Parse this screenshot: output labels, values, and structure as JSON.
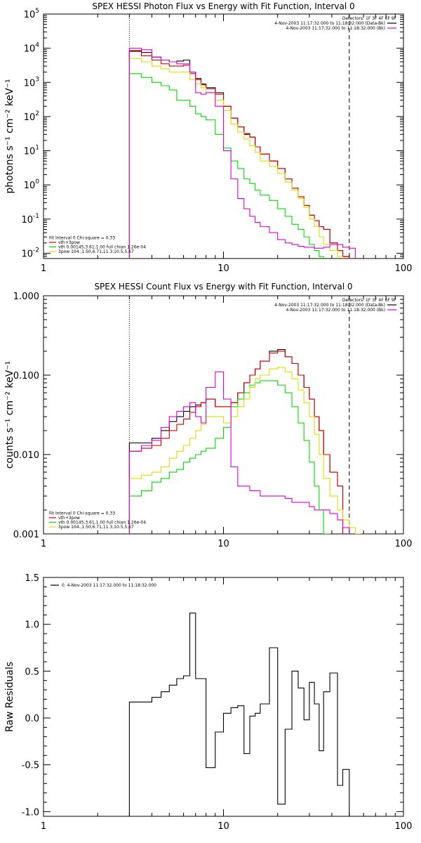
{
  "chart_data": [
    {
      "type": "line",
      "title": "SPEX HESSI Photon Flux vs Energy with Fit Function, Interval 0",
      "ylabel": "photons s⁻¹ cm⁻² keV⁻¹",
      "xlabel": "",
      "xscale": "log",
      "yscale": "log",
      "xlim": [
        1,
        100
      ],
      "ylim": [
        0.007,
        100000
      ],
      "xticks": [
        1,
        10,
        100
      ],
      "xtick_labels": [
        "1",
        "10",
        "100"
      ],
      "yticks": [
        0.01,
        0.1,
        1,
        10,
        100,
        1000,
        10000,
        100000
      ],
      "ytick_labels": [
        {
          "base": "10",
          "exp": "-2"
        },
        {
          "base": "10",
          "exp": "-1"
        },
        {
          "base": "10",
          "exp": "0"
        },
        {
          "base": "10",
          "exp": "1"
        },
        {
          "base": "10",
          "exp": "2"
        },
        {
          "base": "10",
          "exp": "3"
        },
        {
          "base": "10",
          "exp": "4"
        },
        {
          "base": "10",
          "exp": "5"
        }
      ],
      "vlines": [
        {
          "x": 3,
          "style": "dotted"
        },
        {
          "x": 50,
          "style": "dashed"
        }
      ],
      "legend_topright": {
        "header": "Detectors: 1F 3F 4F 6F 9F",
        "entries": [
          {
            "text": "4-Nov-2003 11:17:32.000 to 11:18:32.000 (Data-Bk)",
            "color": "#000000"
          },
          {
            "text": "4-Nov-2003 11:17:32.000 to 11:18:32.000 (Bk)",
            "color": "#dd00dd"
          }
        ]
      },
      "legend_bottomleft": {
        "header": "Fit Interval 0   Chi-square = 0.33",
        "entries": [
          {
            "text": "vth+3pow",
            "color": "#dd0000"
          },
          {
            "text": "vth 0.00145,3.61,1.00   full chian 1.26e-04",
            "color": "#00dd00"
          },
          {
            "text": "3pow 104.,1.50,6.71,11.3,10.5,5.67",
            "color": "#dddd00"
          }
        ]
      },
      "bin_edges": [
        3.0,
        3.5,
        4.0,
        4.5,
        5.0,
        5.5,
        6.0,
        6.5,
        7.0,
        7.5,
        8.0,
        9.0,
        10.0,
        11.0,
        12.0,
        13.0,
        14.0,
        15.0,
        16.0,
        18.0,
        20.0,
        22.0,
        24.0,
        26.0,
        28.0,
        30.0,
        32.0,
        34.0,
        36.0,
        39.0,
        43.0,
        46.0,
        50.0,
        54.0,
        58.0,
        63.0
      ],
      "series": [
        {
          "color": "#000000",
          "values": [
            8500,
            7500,
            5500,
            4500,
            4000,
            4200,
            4500,
            2000,
            1300,
            900,
            700,
            500,
            200,
            90,
            50,
            30,
            25,
            13,
            8,
            5,
            3,
            1.5,
            0.8,
            0.45,
            0.25,
            0.13,
            0.09,
            0.06,
            0.05,
            0.02,
            0.012,
            0.008,
            0.006,
            null,
            null
          ]
        },
        {
          "color": "#dd0000",
          "values": [
            8000,
            6000,
            4500,
            3500,
            3000,
            3000,
            3200,
            1800,
            1200,
            850,
            650,
            450,
            200,
            90,
            50,
            32,
            25,
            13,
            8,
            5,
            3,
            1.5,
            0.8,
            0.45,
            0.25,
            0.13,
            0.09,
            0.06,
            0.05,
            0.02,
            0.012,
            0.008,
            0.006,
            null,
            null
          ]
        },
        {
          "color": "#00dd00",
          "values": [
            1800,
            1400,
            1000,
            800,
            600,
            300,
            300,
            200,
            120,
            100,
            80,
            30,
            12,
            5,
            3,
            1.5,
            1.1,
            0.7,
            0.5,
            0.35,
            0.2,
            0.12,
            0.07,
            0.05,
            0.03,
            0.018,
            0.012,
            0.008,
            null,
            null,
            null,
            null,
            null,
            null,
            null
          ]
        },
        {
          "color": "#dddd00",
          "values": [
            5000,
            4000,
            3000,
            2500,
            2000,
            2000,
            2000,
            1200,
            900,
            700,
            500,
            300,
            150,
            60,
            35,
            22,
            14,
            9,
            5,
            3.5,
            2.2,
            1.2,
            0.7,
            0.4,
            0.22,
            0.1,
            0.06,
            0.03,
            0.018,
            0.012,
            0.008,
            0.006,
            null,
            null,
            null
          ]
        },
        {
          "color": "#dd00dd",
          "values": [
            10000,
            9000,
            5500,
            4500,
            4000,
            3500,
            3500,
            2000,
            500,
            450,
            500,
            200,
            10,
            1.5,
            0.4,
            0.2,
            0.12,
            0.08,
            0.06,
            0.04,
            0.025,
            0.02,
            0.018,
            0.016,
            0.015,
            0.015,
            0.014,
            0.014,
            0.015,
            0.018,
            0.018,
            0.015,
            0.014,
            null,
            null
          ]
        }
      ]
    },
    {
      "type": "line",
      "title": "SPEX HESSI Count Flux vs Energy with Fit Function, Interval 0",
      "ylabel": "counts s⁻¹ cm⁻² keV⁻¹",
      "xlabel": "",
      "xscale": "log",
      "yscale": "log",
      "xlim": [
        1,
        100
      ],
      "ylim": [
        0.001,
        1.0
      ],
      "xticks": [
        1,
        10,
        100
      ],
      "xtick_labels": [
        "1",
        "10",
        "100"
      ],
      "yticks": [
        0.001,
        0.01,
        0.1,
        1.0
      ],
      "ytick_labels": [
        "0.001",
        "0.010",
        "0.100",
        "1.000"
      ],
      "vlines": [
        {
          "x": 3,
          "style": "dotted"
        },
        {
          "x": 50,
          "style": "dashed"
        }
      ],
      "legend_topright": {
        "header": "Detectors: 1F 3F 4F 6F 9F",
        "entries": [
          {
            "text": "4-Nov-2003 11:17:32.000 to 11:18:32.000 (Data-Bk)",
            "color": "#000000"
          },
          {
            "text": "4-Nov-2003 11:17:32.000 to 11:18:32.000 (Bk)",
            "color": "#dd00dd"
          }
        ]
      },
      "legend_bottomleft": {
        "header": "Fit Interval 0   Chi-square = 0.33",
        "entries": [
          {
            "text": "vth+3pow",
            "color": "#dd0000"
          },
          {
            "text": "vth 0.00145,3.61,1.00   full chian 1.26e-04",
            "color": "#00dd00"
          },
          {
            "text": "3pow 104.,1.50,6.71,11.3,10.5,5.67",
            "color": "#dddd00"
          }
        ]
      },
      "bin_edges": [
        3.0,
        3.5,
        4.0,
        4.5,
        5.0,
        5.5,
        6.0,
        6.5,
        7.0,
        7.5,
        8.0,
        9.0,
        10.0,
        11.0,
        12.0,
        13.0,
        14.0,
        15.0,
        16.0,
        18.0,
        20.0,
        22.0,
        24.0,
        26.0,
        28.0,
        30.0,
        32.0,
        34.0,
        36.0,
        39.0,
        43.0,
        46.0,
        50.0,
        54.0,
        58.0,
        63.0
      ],
      "series": [
        {
          "color": "#000000",
          "values": [
            0.014,
            0.014,
            0.016,
            0.02,
            0.026,
            0.03,
            0.035,
            0.04,
            0.042,
            0.045,
            0.05,
            0.04,
            0.04,
            0.045,
            0.06,
            0.08,
            0.1,
            0.12,
            0.15,
            0.2,
            0.21,
            0.17,
            0.14,
            0.1,
            0.07,
            0.05,
            0.03,
            0.02,
            0.01,
            0.006,
            0.004,
            null,
            null,
            null,
            null
          ]
        },
        {
          "color": "#dd0000",
          "values": [
            0.011,
            0.012,
            0.013,
            0.016,
            0.02,
            0.024,
            0.028,
            0.034,
            0.04,
            0.045,
            0.05,
            0.04,
            0.04,
            0.045,
            0.06,
            0.08,
            0.1,
            0.12,
            0.15,
            0.19,
            0.2,
            0.17,
            0.14,
            0.1,
            0.07,
            0.05,
            0.03,
            0.02,
            0.01,
            0.006,
            0.004,
            null,
            null,
            null,
            null
          ]
        },
        {
          "color": "#00dd00",
          "values": [
            0.003,
            0.0035,
            0.0045,
            0.005,
            0.006,
            0.0065,
            0.008,
            0.009,
            0.01,
            0.011,
            0.012,
            0.016,
            0.022,
            0.04,
            0.05,
            0.06,
            0.075,
            0.08,
            0.085,
            0.085,
            0.075,
            0.06,
            0.04,
            0.025,
            0.015,
            0.008,
            0.004,
            0.002,
            0.001,
            null,
            null,
            null,
            null,
            null,
            null
          ]
        },
        {
          "color": "#dddd00",
          "values": [
            0.005,
            0.0055,
            0.006,
            0.007,
            0.009,
            0.011,
            0.013,
            0.016,
            0.02,
            0.024,
            0.03,
            0.03,
            0.025,
            0.03,
            0.04,
            0.05,
            0.07,
            0.09,
            0.1,
            0.12,
            0.125,
            0.11,
            0.09,
            0.065,
            0.045,
            0.03,
            0.018,
            0.01,
            0.005,
            0.003,
            0.002,
            0.0015,
            0.0012,
            0.001,
            null
          ]
        },
        {
          "color": "#dd00dd",
          "values": [
            0.011,
            0.013,
            0.015,
            0.022,
            0.03,
            0.035,
            0.04,
            0.045,
            0.03,
            0.025,
            0.07,
            0.11,
            0.05,
            0.007,
            0.004,
            0.004,
            0.0035,
            0.0035,
            0.003,
            0.003,
            0.003,
            0.0028,
            0.0025,
            0.0025,
            0.0025,
            0.0022,
            0.002,
            0.002,
            0.002,
            0.0018,
            0.0015,
            0.0012,
            null,
            null,
            null
          ]
        }
      ]
    },
    {
      "type": "line",
      "title": "",
      "ylabel": "Raw Residuals",
      "xlabel": "",
      "xscale": "log",
      "yscale": "linear",
      "xlim": [
        1,
        100
      ],
      "ylim": [
        -1.05,
        1.5
      ],
      "xticks": [
        1,
        10,
        100
      ],
      "xtick_labels": [
        "1",
        "10",
        "100"
      ],
      "yticks": [
        -1.0,
        -0.5,
        0.0,
        0.5,
        1.0,
        1.5
      ],
      "ytick_labels": [
        "-1.0",
        "-0.5",
        "0.0",
        "0.5",
        "1.0",
        "1.5"
      ],
      "legend_topleft": {
        "entries": [
          {
            "text": "0. 4-Nov-2003 11:17:32.000 to 11:18:32.000",
            "color": "#000000"
          }
        ]
      },
      "bin_edges": [
        3.0,
        4.0,
        4.5,
        5.0,
        5.5,
        6.0,
        6.5,
        7.0,
        8.0,
        9.0,
        10.0,
        11.0,
        12.0,
        13.0,
        14.0,
        15.0,
        16.0,
        18.0,
        20.0,
        22.0,
        24.0,
        26.0,
        28.0,
        30.0,
        32.0,
        34.0,
        36.0,
        39.0,
        43.0,
        46.0,
        50.0
      ],
      "series": [
        {
          "color": "#000000",
          "values": [
            0.17,
            0.22,
            0.28,
            0.35,
            0.42,
            0.45,
            1.12,
            0.42,
            -0.53,
            -0.15,
            0.05,
            0.11,
            0.13,
            -0.38,
            0.02,
            0.05,
            0.15,
            0.75,
            -0.92,
            -0.12,
            0.5,
            0.32,
            -0.02,
            0.38,
            0.15,
            -0.35,
            0.28,
            0.48,
            -0.72,
            -0.55
          ]
        }
      ]
    }
  ]
}
